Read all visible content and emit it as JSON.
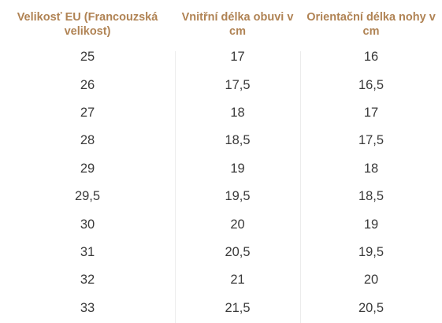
{
  "table": {
    "headers": [
      "Velikosť EU (Francouzská velikost)",
      "Vnitřní délka obuvi v cm",
      "Orientační délka nohy v cm"
    ],
    "rows": [
      [
        "25",
        "17",
        "16"
      ],
      [
        "26",
        "17,5",
        "16,5"
      ],
      [
        "27",
        "18",
        "17"
      ],
      [
        "28",
        "18,5",
        "17,5"
      ],
      [
        "29",
        "19",
        "18"
      ],
      [
        "29,5",
        "19,5",
        "18,5"
      ],
      [
        "30",
        "20",
        "19"
      ],
      [
        "31",
        "20,5",
        "19,5"
      ],
      [
        "32",
        "21",
        "20"
      ],
      [
        "33",
        "21,5",
        "20,5"
      ]
    ]
  },
  "colors": {
    "header_text": "#b08354",
    "body_text": "#3a3a3a",
    "divider": "#ececec"
  }
}
